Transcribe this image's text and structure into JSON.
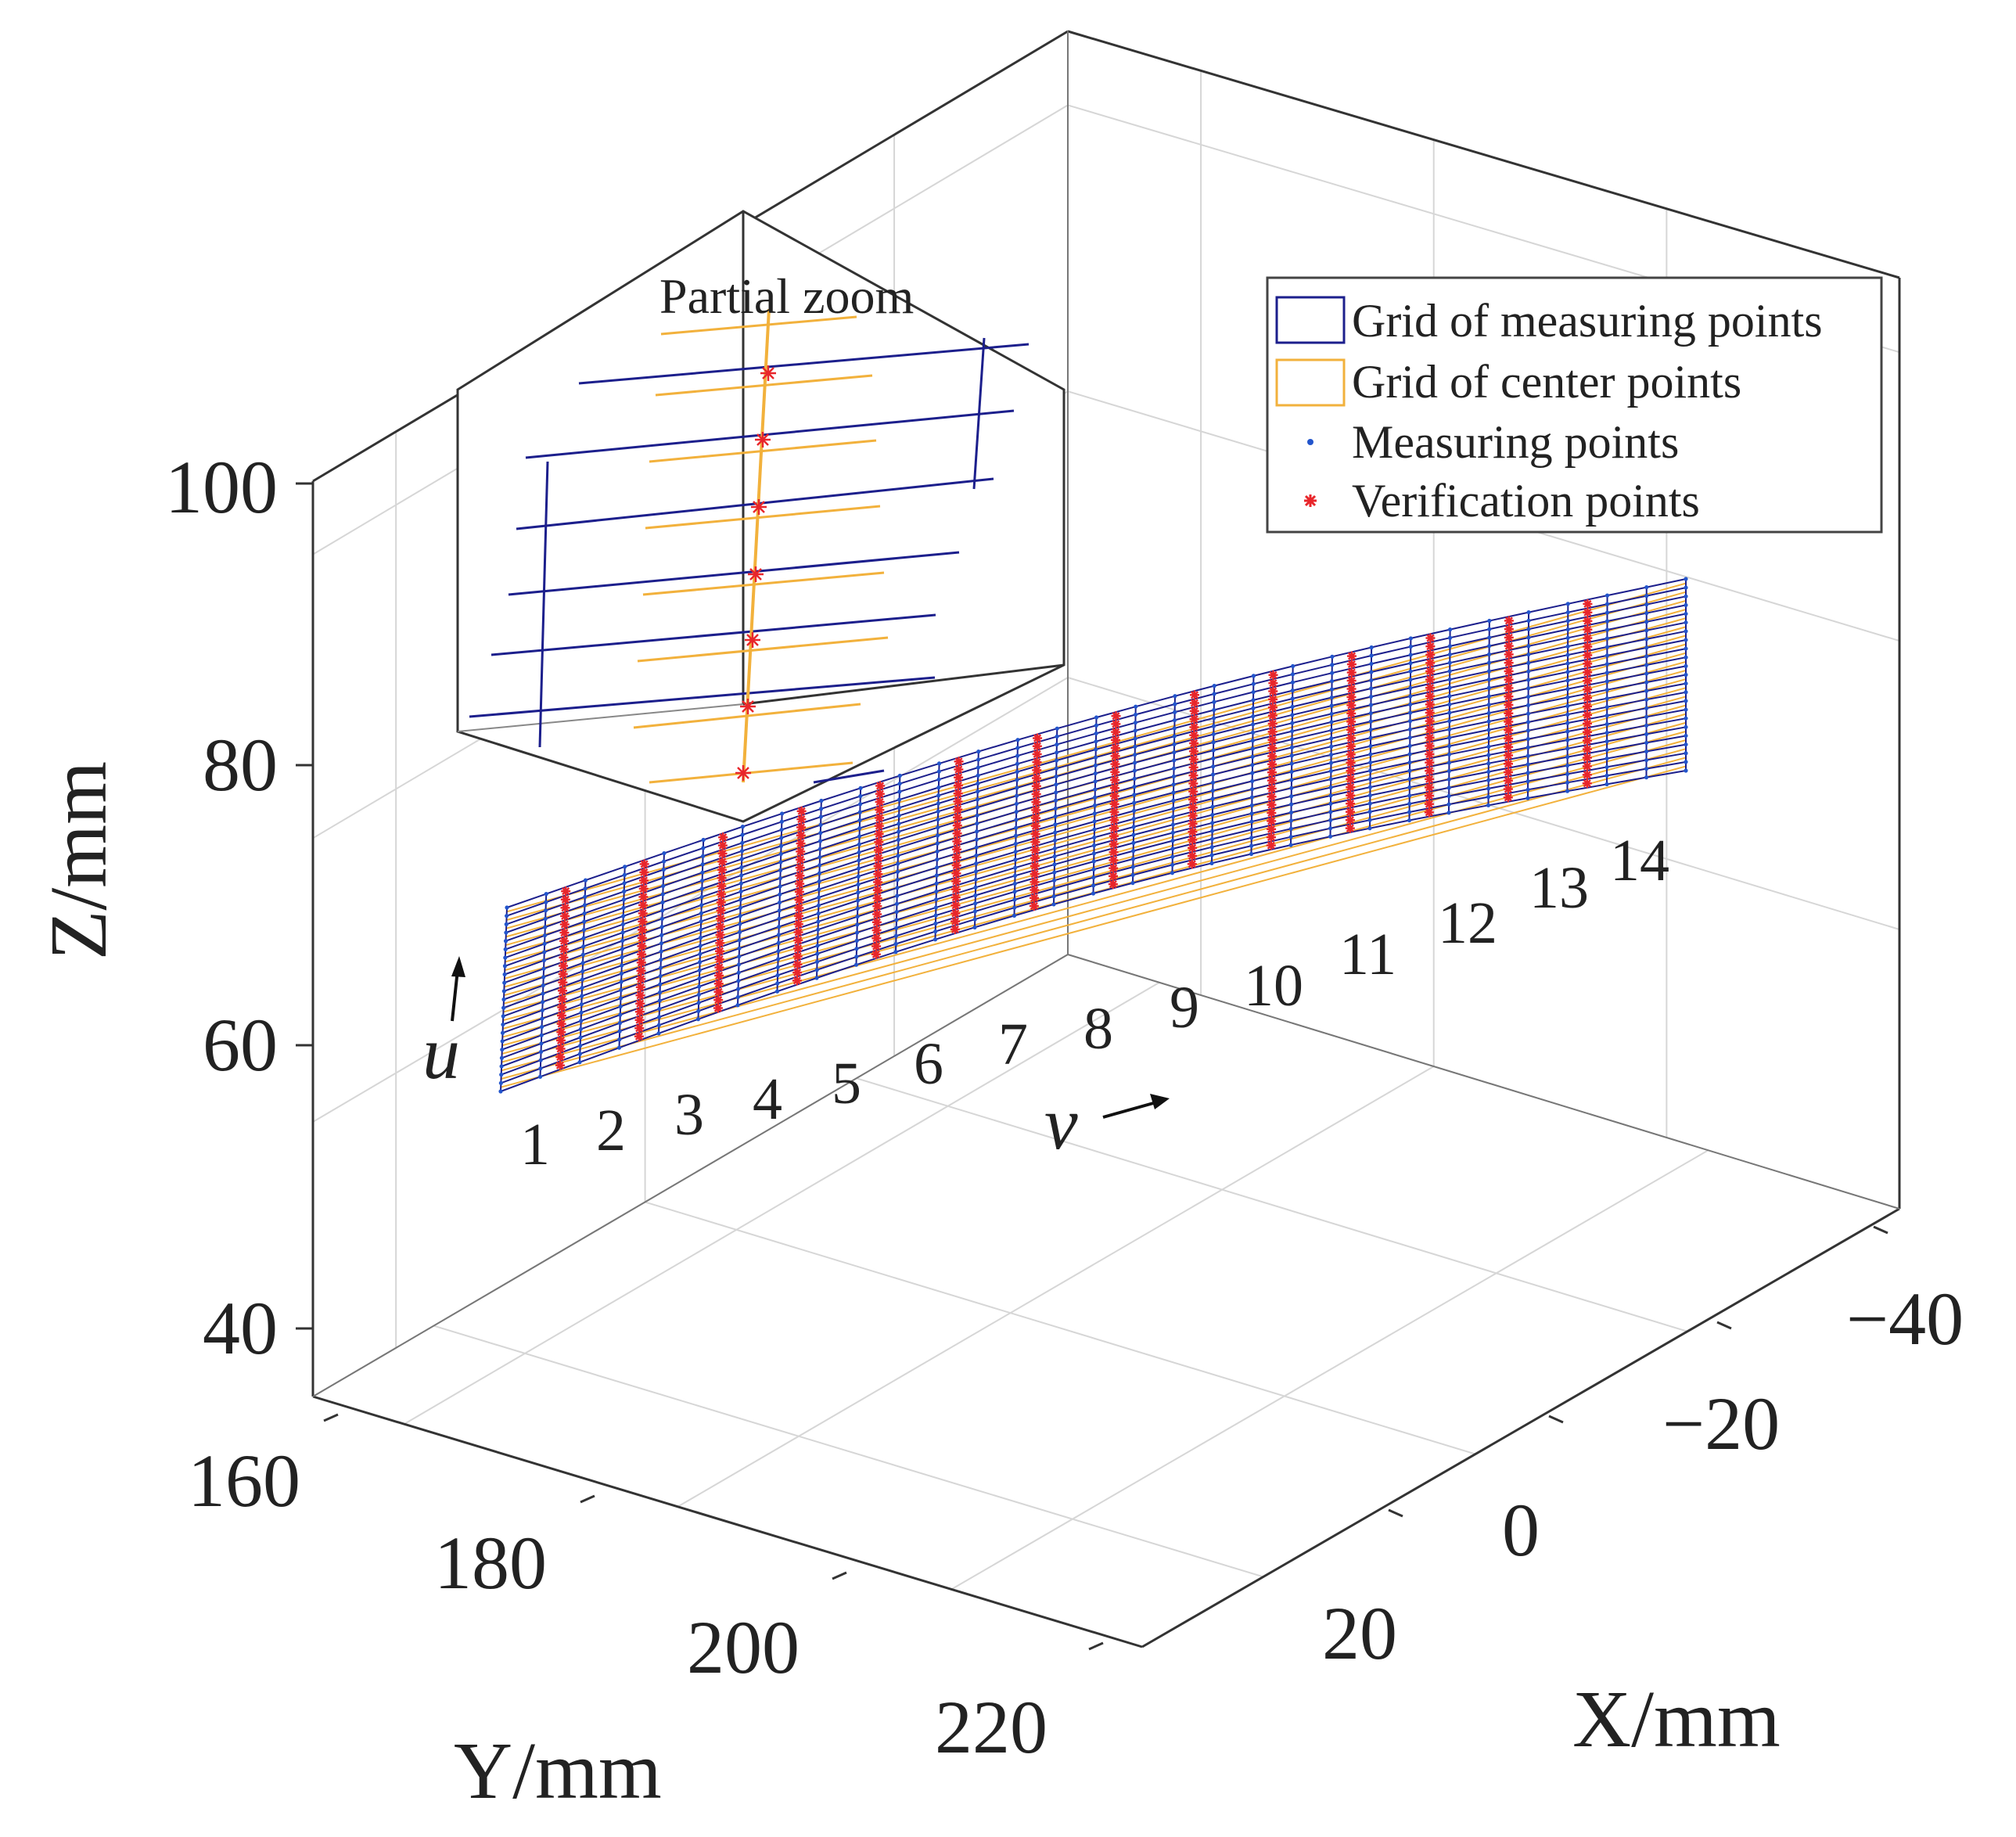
{
  "chart_data": {
    "type": "surface-grid-3d",
    "xlabel": "X/mm",
    "ylabel": "Y/mm",
    "zlabel": "Z/mm",
    "x_ticks": [
      "20",
      "0",
      "−20",
      "−40"
    ],
    "x_tick_values": [
      20,
      0,
      -20,
      -40
    ],
    "y_ticks": [
      "160",
      "180",
      "200",
      "220"
    ],
    "y_tick_values": [
      160,
      180,
      200,
      220
    ],
    "z_ticks": [
      "40",
      "60",
      "80",
      "100"
    ],
    "z_tick_values": [
      40,
      60,
      80,
      100
    ],
    "grid": true,
    "legend_position": "top-right",
    "legend": [
      {
        "label": "Grid of measuring points",
        "color": "#1c1f8c",
        "marker": "box"
      },
      {
        "label": "Grid of center points",
        "color": "#f2b13c",
        "marker": "box"
      },
      {
        "label": "Measuring points",
        "color": "#2255cc",
        "marker": "dot"
      },
      {
        "label": "Verification points",
        "color": "#e8262b",
        "marker": "asterisk"
      }
    ],
    "inset_title": "Partial zoom",
    "column_labels": [
      "1",
      "2",
      "3",
      "4",
      "5",
      "6",
      "7",
      "8",
      "9",
      "10",
      "11",
      "12",
      "13",
      "14"
    ],
    "direction_labels": {
      "u": "u",
      "v": "v"
    },
    "grid_rows": 22,
    "grid_cols": 30,
    "inset_points": 7
  },
  "colors": {
    "measuring_grid": "#1c1f8c",
    "center_grid": "#f2b13c",
    "measuring_point": "#2255cc",
    "verification_point": "#e8262b",
    "box": "#333333",
    "gridline": "#d6d6d6"
  }
}
